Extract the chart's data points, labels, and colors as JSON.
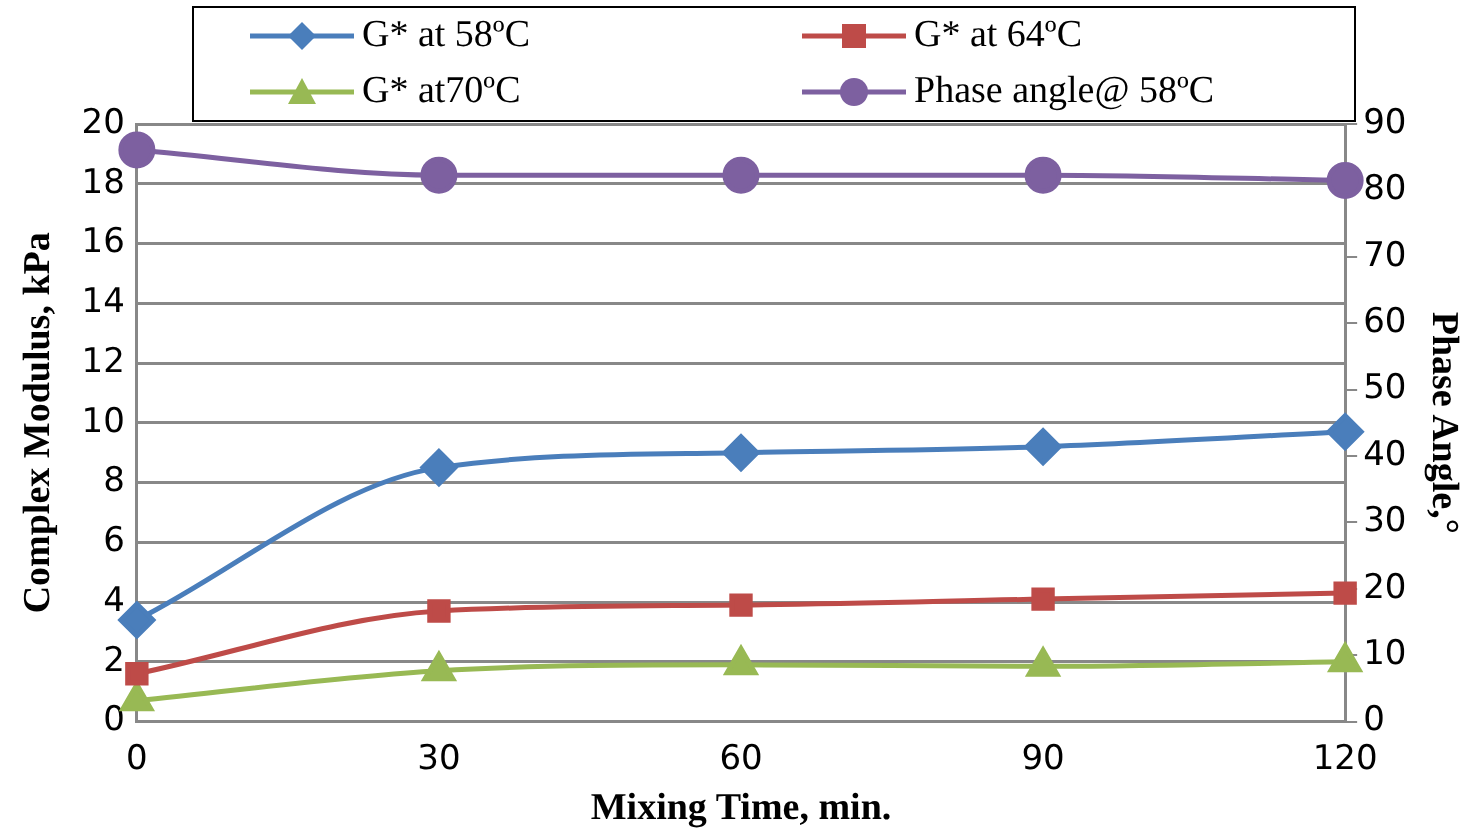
{
  "chart_data": {
    "type": "line",
    "xlabel": "Mixing Time, min.",
    "ylabel": "Complex Modulus, kPa",
    "y2label": "Phase Angle,°",
    "categories": [
      "0",
      "30",
      "60",
      "90",
      "120"
    ],
    "ylim": [
      0,
      20
    ],
    "yticks": [
      0,
      2,
      4,
      6,
      8,
      10,
      12,
      14,
      16,
      18,
      20
    ],
    "y2lim": [
      0,
      90
    ],
    "y2ticks": [
      0,
      10,
      20,
      30,
      40,
      50,
      60,
      70,
      80,
      90
    ],
    "grid": "y",
    "legend": "top",
    "series": [
      {
        "name": "G* at 58ºC",
        "color": "#4a7ebb",
        "marker": "diamond",
        "values": [
          3.4,
          8.5,
          9.0,
          9.2,
          9.7
        ]
      },
      {
        "name": "G* at 64ºC",
        "color": "#be4b48",
        "marker": "square",
        "values": [
          1.6,
          3.7,
          3.9,
          4.1,
          4.3
        ]
      },
      {
        "name": "G* at70ºC",
        "color": "#98b954",
        "marker": "triangle",
        "values": [
          0.7,
          1.7,
          1.9,
          1.85,
          2.0
        ]
      },
      {
        "name": "Phase angle@ 58ºC",
        "color": "#7d60a0",
        "marker": "circle",
        "axis": "y2",
        "values": [
          86.1,
          82.3,
          82.3,
          82.3,
          81.5
        ]
      }
    ]
  }
}
